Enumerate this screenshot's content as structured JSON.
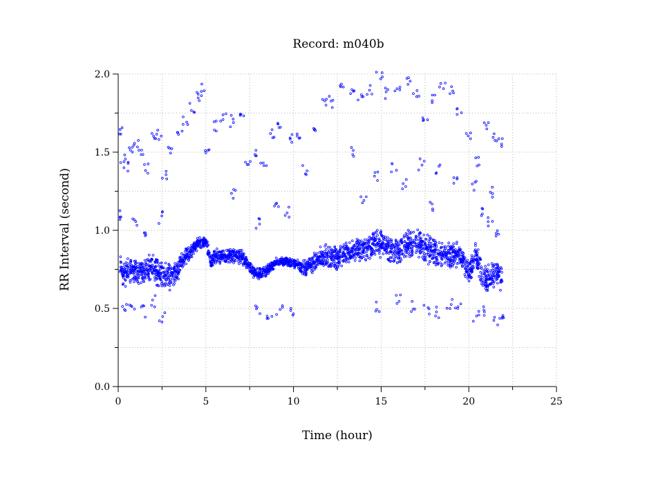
{
  "chart_data": {
    "type": "scatter",
    "title": "Record:  m040b",
    "xlabel": "Time (hour)",
    "ylabel": "RR Interval (second)",
    "xlim": [
      0,
      25
    ],
    "ylim": [
      0.0,
      2.0
    ],
    "xticks": [
      "0",
      "5",
      "10",
      "15",
      "20",
      "25"
    ],
    "yticks": [
      "0.0",
      "0.5",
      "1.0",
      "1.5",
      "2.0"
    ],
    "grid": true,
    "marker_color": "#0000ff",
    "series": [
      {
        "x": [
          0.1,
          0.3,
          0.6,
          1.0,
          1.4,
          1.8,
          2.2,
          2.6,
          3.0,
          3.4,
          3.8,
          4.2,
          4.6,
          5.0,
          5.3,
          5.6,
          6.0,
          6.5,
          7.0,
          7.4,
          7.8,
          8.2,
          8.6,
          9.0,
          9.5,
          10.0,
          10.5,
          10.8,
          11.2,
          11.6,
          12.0,
          12.5,
          13.0,
          13.5,
          14.0,
          14.5,
          15.0,
          15.5,
          16.0,
          16.5,
          17.0,
          17.5,
          18.0,
          18.5,
          19.0,
          19.5,
          20.0,
          20.4,
          20.8,
          21.2,
          21.6,
          21.9
        ],
        "y": [
          0.78,
          0.72,
          0.74,
          0.75,
          0.73,
          0.76,
          0.74,
          0.72,
          0.7,
          0.75,
          0.83,
          0.87,
          0.92,
          0.93,
          0.8,
          0.84,
          0.83,
          0.84,
          0.83,
          0.78,
          0.72,
          0.72,
          0.75,
          0.8,
          0.8,
          0.79,
          0.76,
          0.76,
          0.8,
          0.83,
          0.84,
          0.82,
          0.86,
          0.87,
          0.88,
          0.9,
          0.92,
          0.88,
          0.86,
          0.91,
          0.92,
          0.88,
          0.86,
          0.85,
          0.84,
          0.85,
          0.73,
          0.84,
          0.7,
          0.68,
          0.74,
          0.7
        ],
        "spread": [
          0.1,
          0.12,
          0.1,
          0.09,
          0.1,
          0.09,
          0.1,
          0.1,
          0.09,
          0.08,
          0.06,
          0.05,
          0.04,
          0.04,
          0.05,
          0.05,
          0.05,
          0.05,
          0.05,
          0.05,
          0.04,
          0.04,
          0.04,
          0.03,
          0.03,
          0.03,
          0.05,
          0.06,
          0.07,
          0.08,
          0.08,
          0.09,
          0.08,
          0.08,
          0.09,
          0.1,
          0.1,
          0.1,
          0.11,
          0.1,
          0.1,
          0.1,
          0.1,
          0.09,
          0.09,
          0.08,
          0.08,
          0.1,
          0.1,
          0.1,
          0.1,
          0.1
        ]
      }
    ],
    "outliers": [
      {
        "x": 0.2,
        "y": 1.65
      },
      {
        "x": 0.3,
        "y": 1.45
      },
      {
        "x": 0.5,
        "y": 1.4
      },
      {
        "x": 0.8,
        "y": 1.5
      },
      {
        "x": 1.0,
        "y": 1.55
      },
      {
        "x": 1.3,
        "y": 1.52
      },
      {
        "x": 1.6,
        "y": 1.4
      },
      {
        "x": 2.0,
        "y": 1.58
      },
      {
        "x": 2.3,
        "y": 1.62
      },
      {
        "x": 2.6,
        "y": 1.35
      },
      {
        "x": 3.0,
        "y": 1.5
      },
      {
        "x": 3.5,
        "y": 1.62
      },
      {
        "x": 3.8,
        "y": 1.7
      },
      {
        "x": 4.2,
        "y": 1.78
      },
      {
        "x": 4.5,
        "y": 1.86
      },
      {
        "x": 4.8,
        "y": 1.9
      },
      {
        "x": 5.1,
        "y": 1.5
      },
      {
        "x": 5.5,
        "y": 1.67
      },
      {
        "x": 6.0,
        "y": 1.72
      },
      {
        "x": 6.5,
        "y": 1.7
      },
      {
        "x": 7.0,
        "y": 1.72
      },
      {
        "x": 7.4,
        "y": 1.45
      },
      {
        "x": 7.8,
        "y": 1.48
      },
      {
        "x": 8.3,
        "y": 1.42
      },
      {
        "x": 8.8,
        "y": 1.62
      },
      {
        "x": 9.2,
        "y": 1.66
      },
      {
        "x": 9.8,
        "y": 1.6
      },
      {
        "x": 10.3,
        "y": 1.58
      },
      {
        "x": 10.7,
        "y": 1.38
      },
      {
        "x": 11.2,
        "y": 1.65
      },
      {
        "x": 11.7,
        "y": 1.8
      },
      {
        "x": 12.2,
        "y": 1.82
      },
      {
        "x": 12.8,
        "y": 1.9
      },
      {
        "x": 13.3,
        "y": 1.88
      },
      {
        "x": 13.8,
        "y": 1.85
      },
      {
        "x": 14.3,
        "y": 1.9
      },
      {
        "x": 14.9,
        "y": 1.98
      },
      {
        "x": 15.4,
        "y": 1.88
      },
      {
        "x": 15.9,
        "y": 1.92
      },
      {
        "x": 16.5,
        "y": 1.95
      },
      {
        "x": 17.0,
        "y": 1.88
      },
      {
        "x": 17.5,
        "y": 1.7
      },
      {
        "x": 18.0,
        "y": 1.85
      },
      {
        "x": 18.5,
        "y": 1.92
      },
      {
        "x": 19.0,
        "y": 1.88
      },
      {
        "x": 19.5,
        "y": 1.75
      },
      {
        "x": 20.0,
        "y": 1.6
      },
      {
        "x": 20.5,
        "y": 1.45
      },
      {
        "x": 21.0,
        "y": 1.65
      },
      {
        "x": 21.5,
        "y": 1.58
      },
      {
        "x": 21.8,
        "y": 1.55
      },
      {
        "x": 13.4,
        "y": 1.5
      },
      {
        "x": 14.7,
        "y": 1.35
      },
      {
        "x": 15.7,
        "y": 1.4
      },
      {
        "x": 16.3,
        "y": 1.3
      },
      {
        "x": 17.3,
        "y": 1.42
      },
      {
        "x": 18.3,
        "y": 1.38
      },
      {
        "x": 19.2,
        "y": 1.3
      },
      {
        "x": 20.3,
        "y": 1.28
      },
      {
        "x": 21.3,
        "y": 1.25
      },
      {
        "x": 0.2,
        "y": 1.1
      },
      {
        "x": 0.9,
        "y": 1.05
      },
      {
        "x": 1.5,
        "y": 1.0
      },
      {
        "x": 2.4,
        "y": 1.08
      },
      {
        "x": 9.0,
        "y": 1.15
      },
      {
        "x": 9.6,
        "y": 1.12
      },
      {
        "x": 7.9,
        "y": 1.05
      },
      {
        "x": 14.0,
        "y": 1.2
      },
      {
        "x": 17.8,
        "y": 1.15
      },
      {
        "x": 20.7,
        "y": 1.12
      },
      {
        "x": 21.2,
        "y": 1.05
      },
      {
        "x": 21.7,
        "y": 1.0
      },
      {
        "x": 0.3,
        "y": 0.5
      },
      {
        "x": 0.8,
        "y": 0.52
      },
      {
        "x": 1.4,
        "y": 0.48
      },
      {
        "x": 2.0,
        "y": 0.55
      },
      {
        "x": 2.5,
        "y": 0.45
      },
      {
        "x": 8.0,
        "y": 0.5
      },
      {
        "x": 8.6,
        "y": 0.45
      },
      {
        "x": 9.2,
        "y": 0.5
      },
      {
        "x": 10.0,
        "y": 0.48
      },
      {
        "x": 14.8,
        "y": 0.52
      },
      {
        "x": 16.0,
        "y": 0.55
      },
      {
        "x": 16.8,
        "y": 0.52
      },
      {
        "x": 17.6,
        "y": 0.5
      },
      {
        "x": 18.2,
        "y": 0.48
      },
      {
        "x": 18.9,
        "y": 0.52
      },
      {
        "x": 19.4,
        "y": 0.5
      },
      {
        "x": 20.4,
        "y": 0.45
      },
      {
        "x": 21.0,
        "y": 0.48
      },
      {
        "x": 21.6,
        "y": 0.43
      },
      {
        "x": 21.9,
        "y": 0.42
      },
      {
        "x": 6.6,
        "y": 1.23
      }
    ]
  }
}
